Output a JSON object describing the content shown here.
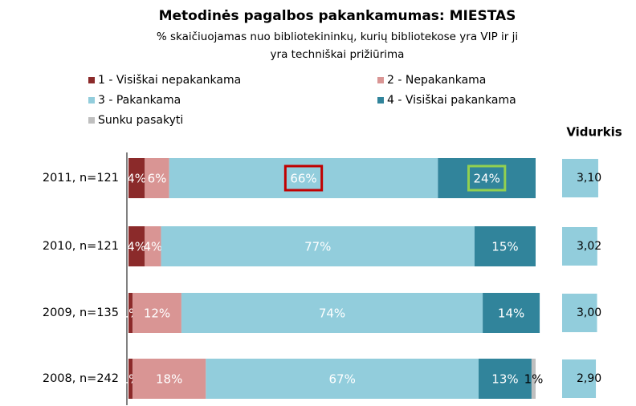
{
  "chart_data": {
    "type": "stacked-bar-horizontal",
    "title": "Metodinės pagalbos pakankamumas: MIESTAS",
    "subtitle": [
      "% skaičiuojamas nuo bibliotekininkų, kurių bibliotekose yra VIP ir ji",
      "yra techniškai prižiūrima"
    ],
    "categories": [
      "2011, n=121",
      "2010, n=121",
      "2009, n=135",
      "2008, n=242"
    ],
    "series": [
      {
        "name": "1 - Visiškai nepakankama",
        "color": "#8b2a2a",
        "values": [
          4,
          4,
          1,
          1
        ],
        "value_labels": [
          "4%",
          "4%",
          "1%",
          "1%"
        ]
      },
      {
        "name": "2 - Nepakankama",
        "color": "#d99594",
        "values": [
          6,
          4,
          12,
          18
        ],
        "value_labels": [
          "6%",
          "4%",
          "12%",
          "18%"
        ]
      },
      {
        "name": "3 - Pakankama",
        "color": "#92cddc",
        "values": [
          66,
          77,
          74,
          67
        ],
        "value_labels": [
          "66%",
          "77%",
          "74%",
          "67%"
        ]
      },
      {
        "name": "4 - Visiškai pakankama",
        "color": "#31849b",
        "values": [
          24,
          15,
          14,
          13
        ],
        "value_labels": [
          "24%",
          "15%",
          "14%",
          "13%"
        ]
      },
      {
        "name": "Sunku pasakyti",
        "color": "#bfbfbf",
        "values": [
          0,
          0,
          0,
          1
        ],
        "value_labels": [
          null,
          null,
          null,
          "1%"
        ]
      }
    ],
    "average": {
      "title": "Vidurkis",
      "color": "#92cddc",
      "values": [
        3.1,
        3.02,
        3.0,
        2.9
      ],
      "value_labels": [
        "3,10",
        "3,02",
        "3,00",
        "2,90"
      ]
    }
  }
}
